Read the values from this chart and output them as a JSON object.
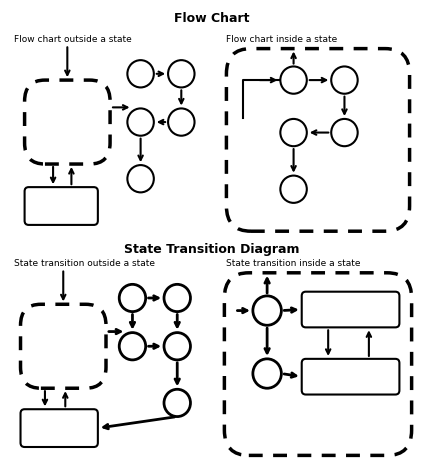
{
  "title_flowchart": "Flow Chart",
  "title_state": "State Transition Diagram",
  "subtitle_fc_outside": "Flow chart outside a state",
  "subtitle_fc_inside": "Flow chart inside a state",
  "subtitle_st_outside": "State transition outside a state",
  "subtitle_st_inside": "State transition inside a state",
  "bg_color": "#ffffff"
}
